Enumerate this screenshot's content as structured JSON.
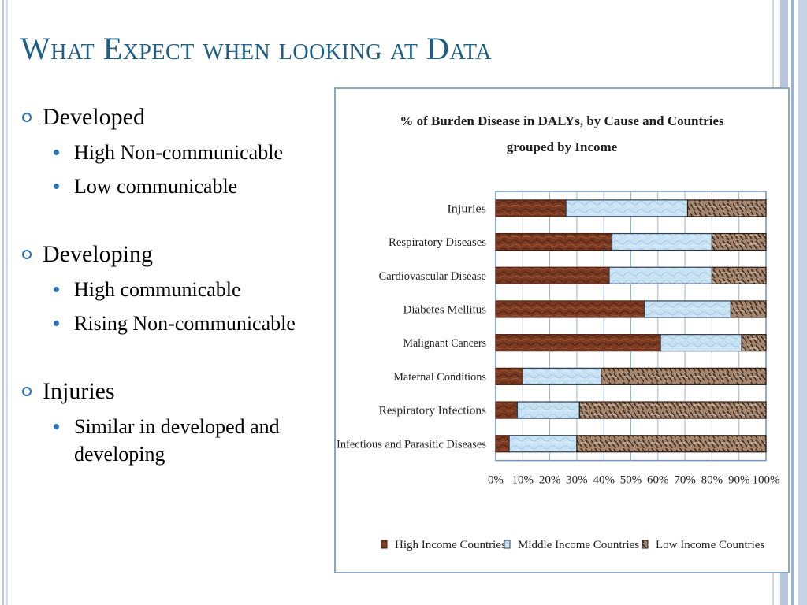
{
  "slide": {
    "title": "What Expect when looking at Data",
    "sections": [
      {
        "heading": "Developed",
        "points": [
          "High Non-communicable",
          "Low communicable"
        ]
      },
      {
        "heading": "Developing",
        "points": [
          "High communicable",
          "Rising Non-communicable"
        ]
      },
      {
        "heading": "Injuries",
        "points": [
          "Similar in developed and developing"
        ]
      }
    ]
  },
  "colors": {
    "title": "#1e5f86",
    "bullet": "#2c72b4",
    "high_income": "#7a3a22",
    "middle_income": "#c9e3f5",
    "low_income": "#a5876f"
  },
  "chart_data": {
    "type": "bar",
    "orientation": "horizontal",
    "stacked": true,
    "title": "% of Burden Disease in DALYs, by Cause and Countries grouped by Income",
    "title_lines": [
      "% of Burden Disease in DALYs, by Cause and Countries",
      "grouped by Income"
    ],
    "categories": [
      "Injuries",
      "Respiratory Diseases",
      "Cardiovascular Disease",
      "Diabetes Mellitus",
      "Malignant Cancers",
      "Maternal Conditions",
      "Respiratory Infections",
      "Infectious and Parasitic  Diseases"
    ],
    "series": [
      {
        "name": "High Income Countries",
        "values": [
          26,
          43,
          42,
          55,
          61,
          10,
          8,
          5
        ]
      },
      {
        "name": "Middle Income Countries",
        "values": [
          45,
          37,
          38,
          32,
          30,
          29,
          23,
          25
        ]
      },
      {
        "name": "Low Income Countries",
        "values": [
          29,
          20,
          20,
          13,
          9,
          61,
          69,
          70
        ]
      }
    ],
    "xlim": [
      0,
      100
    ],
    "xticks": [
      "0%",
      "10%",
      "20%",
      "30%",
      "40%",
      "50%",
      "60%",
      "70%",
      "80%",
      "90%",
      "100%"
    ],
    "grid": true,
    "legend": "bottom"
  }
}
